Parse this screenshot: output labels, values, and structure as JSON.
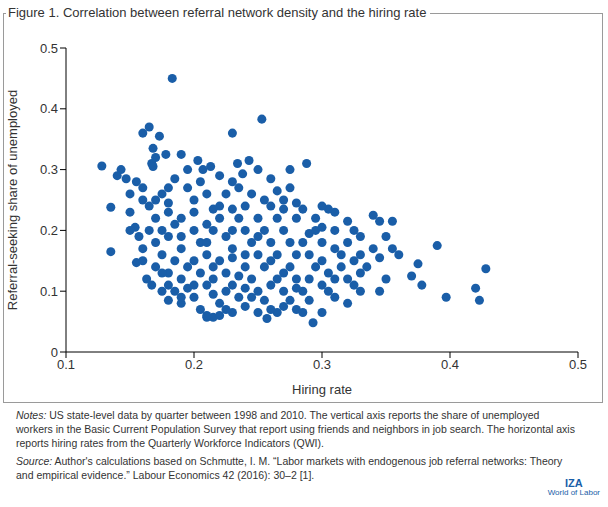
{
  "chart_data": {
    "type": "scatter",
    "title": "Figure 1. Correlation between referral network density and the hiring rate",
    "x_label": "Hiring rate",
    "y_label": "Referral-seeking share of unemployed",
    "xlim": [
      0.1,
      0.5
    ],
    "xticks": [
      0.1,
      0.2,
      0.3,
      0.4,
      0.5
    ],
    "ylim": [
      0,
      0.5
    ],
    "yticks": [
      0,
      0.1,
      0.2,
      0.3,
      0.4,
      0.5
    ],
    "grid": false,
    "color": "#1a5ea8",
    "marker": "circle",
    "notes_label": "Notes:",
    "notes": "US state-level data by quarter between 1998 and 2010. The vertical axis reports the share of unemployed workers in the Basic Current Population Survey that report using friends and neighbors in job search. The horizontal axis reports hiring rates from the Quarterly Workforce Indicators (QWI).",
    "source_label": "Source:",
    "source": "Author's calculations based on Schmutte, I. M. “Labor markets with endogenous job referral networks: Theory and empirical evidence.” Labour Economics 42 (2016): 30–2 [1].",
    "logo": [
      "IZA",
      "World of Labor"
    ],
    "x": [
      0.183,
      0.253,
      0.23,
      0.165,
      0.16,
      0.173,
      0.168,
      0.178,
      0.19,
      0.17,
      0.167,
      0.128,
      0.143,
      0.147,
      0.168,
      0.203,
      0.207,
      0.213,
      0.234,
      0.243,
      0.238,
      0.25,
      0.26,
      0.275,
      0.288,
      0.135,
      0.135,
      0.15,
      0.154,
      0.157,
      0.155,
      0.16,
      0.163,
      0.167,
      0.175,
      0.18,
      0.19,
      0.21,
      0.215,
      0.22,
      0.23,
      0.257,
      0.265,
      0.28,
      0.293,
      0.3,
      0.31,
      0.32,
      0.325,
      0.33,
      0.34,
      0.345,
      0.35,
      0.355,
      0.355,
      0.34,
      0.345,
      0.35,
      0.345,
      0.36,
      0.37,
      0.375,
      0.378,
      0.39,
      0.397,
      0.42,
      0.423,
      0.428,
      0.33,
      0.32,
      0.31,
      0.305,
      0.325,
      0.33,
      0.315,
      0.32,
      0.335,
      0.31,
      0.305,
      0.3,
      0.295,
      0.29,
      0.275,
      0.27,
      0.28,
      0.17,
      0.175,
      0.18,
      0.165,
      0.16,
      0.17,
      0.18,
      0.185,
      0.175,
      0.165,
      0.17,
      0.18,
      0.19,
      0.175,
      0.185,
      0.17,
      0.18,
      0.19,
      0.195,
      0.185,
      0.2,
      0.195,
      0.19,
      0.2,
      0.195,
      0.205,
      0.21,
      0.2,
      0.205,
      0.21,
      0.2,
      0.205,
      0.21,
      0.215,
      0.22,
      0.225,
      0.215,
      0.22,
      0.22,
      0.225,
      0.225,
      0.23,
      0.22,
      0.225,
      0.23,
      0.235,
      0.24,
      0.235,
      0.24,
      0.24,
      0.245,
      0.235,
      0.245,
      0.25,
      0.24,
      0.245,
      0.25,
      0.255,
      0.26,
      0.25,
      0.255,
      0.26,
      0.265,
      0.26,
      0.265,
      0.255,
      0.265,
      0.27,
      0.275,
      0.27,
      0.275,
      0.28,
      0.275,
      0.28,
      0.285,
      0.29,
      0.285,
      0.29,
      0.295,
      0.29,
      0.3,
      0.3,
      0.3,
      0.295,
      0.305,
      0.31,
      0.28,
      0.27,
      0.285,
      0.215,
      0.23,
      0.21,
      0.23,
      0.2,
      0.19,
      0.215,
      0.25,
      0.24,
      0.26,
      0.27,
      0.28,
      0.26,
      0.235,
      0.225,
      0.245,
      0.215,
      0.2,
      0.21,
      0.23,
      0.255,
      0.265,
      0.18,
      0.16,
      0.15,
      0.14,
      0.155,
      0.185,
      0.195,
      0.22,
      0.23,
      0.18,
      0.175,
      0.16,
      0.15,
      0.19,
      0.205,
      0.21,
      0.24,
      0.25,
      0.27,
      0.285,
      0.315,
      0.32,
      0.325,
      0.33,
      0.31,
      0.3
    ],
    "values": [
      0.45,
      0.383,
      0.36,
      0.37,
      0.36,
      0.355,
      0.335,
      0.325,
      0.325,
      0.32,
      0.31,
      0.306,
      0.3,
      0.285,
      0.305,
      0.315,
      0.3,
      0.305,
      0.31,
      0.315,
      0.293,
      0.3,
      0.285,
      0.3,
      0.31,
      0.238,
      0.165,
      0.23,
      0.205,
      0.19,
      0.147,
      0.15,
      0.12,
      0.11,
      0.1,
      0.085,
      0.08,
      0.057,
      0.057,
      0.06,
      0.065,
      0.055,
      0.065,
      0.07,
      0.048,
      0.065,
      0.23,
      0.215,
      0.2,
      0.19,
      0.225,
      0.215,
      0.19,
      0.17,
      0.215,
      0.17,
      0.155,
      0.12,
      0.1,
      0.16,
      0.125,
      0.145,
      0.11,
      0.175,
      0.09,
      0.105,
      0.085,
      0.137,
      0.1,
      0.08,
      0.09,
      0.1,
      0.15,
      0.13,
      0.16,
      0.18,
      0.14,
      0.2,
      0.235,
      0.24,
      0.22,
      0.195,
      0.27,
      0.25,
      0.245,
      0.25,
      0.26,
      0.27,
      0.24,
      0.25,
      0.22,
      0.23,
      0.21,
      0.2,
      0.2,
      0.18,
      0.19,
      0.17,
      0.16,
      0.15,
      0.14,
      0.13,
      0.12,
      0.105,
      0.1,
      0.09,
      0.14,
      0.22,
      0.25,
      0.27,
      0.28,
      0.26,
      0.2,
      0.18,
      0.16,
      0.15,
      0.13,
      0.11,
      0.095,
      0.08,
      0.07,
      0.2,
      0.22,
      0.24,
      0.26,
      0.19,
      0.17,
      0.15,
      0.13,
      0.11,
      0.09,
      0.075,
      0.22,
      0.2,
      0.24,
      0.26,
      0.27,
      0.18,
      0.16,
      0.14,
      0.12,
      0.1,
      0.085,
      0.07,
      0.22,
      0.2,
      0.24,
      0.22,
      0.18,
      0.16,
      0.14,
      0.12,
      0.1,
      0.085,
      0.2,
      0.18,
      0.16,
      0.14,
      0.12,
      0.1,
      0.085,
      0.18,
      0.16,
      0.14,
      0.12,
      0.11,
      0.15,
      0.18,
      0.2,
      0.13,
      0.12,
      0.22,
      0.235,
      0.235,
      0.14,
      0.155,
      0.18,
      0.2,
      0.11,
      0.19,
      0.235,
      0.19,
      0.16,
      0.15,
      0.13,
      0.105,
      0.11,
      0.125,
      0.1,
      0.09,
      0.12,
      0.23,
      0.21,
      0.235,
      0.25,
      0.265,
      0.245,
      0.27,
      0.26,
      0.29,
      0.28,
      0.285,
      0.3,
      0.29,
      0.28,
      0.11,
      0.13,
      0.17,
      0.2,
      0.09,
      0.07,
      0.06,
      0.105,
      0.065,
      0.075,
      0.065,
      0.14,
      0.12,
      0.11,
      0.16,
      0.17,
      0.205
    ]
  }
}
